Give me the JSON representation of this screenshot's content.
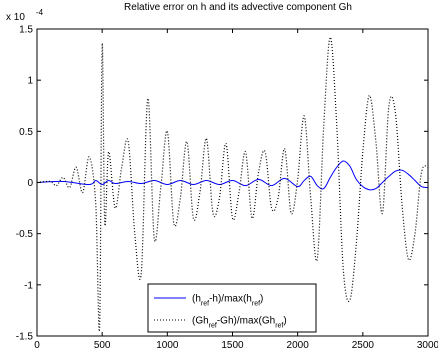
{
  "chart_data": {
    "type": "line",
    "title": "Relative error on h and its advective component Gh",
    "exponent_label": "x 10",
    "exponent_power": "-4",
    "xlim": [
      0,
      3000
    ],
    "ylim": [
      -1.5,
      1.5
    ],
    "xticks": [
      "0",
      "500",
      "1000",
      "1500",
      "2000",
      "2500",
      "3000"
    ],
    "xtick_values": [
      0,
      500,
      1000,
      1500,
      2000,
      2500,
      3000
    ],
    "yticks": [
      "1.5",
      "1",
      "0.5",
      "0",
      "-0.5",
      "-1",
      "-1.5"
    ],
    "ytick_values": [
      1.5,
      1,
      0.5,
      0,
      -0.5,
      -1,
      -1.5
    ],
    "grid": false,
    "legend_placement": "bottom-center",
    "series": [
      {
        "name": "(h_ref-h)/max(h_ref)",
        "legend_parts": [
          [
            "(h",
            ""
          ],
          [
            "ref",
            "sub"
          ],
          [
            "-h)/max(h",
            ""
          ],
          [
            "ref",
            "sub"
          ],
          [
            ")",
            ""
          ]
        ],
        "color": "#0000ff",
        "style": "solid",
        "x": [
          0,
          200,
          400,
          450,
          500,
          550,
          600,
          700,
          800,
          900,
          1000,
          1100,
          1200,
          1300,
          1400,
          1500,
          1600,
          1700,
          1800,
          1900,
          2000,
          2050,
          2100,
          2150,
          2200,
          2250,
          2300,
          2350,
          2400,
          2450,
          2500,
          2550,
          2600,
          2650,
          2700,
          2750,
          2800,
          2850,
          2900,
          2950,
          3000
        ],
        "values": [
          0,
          0.01,
          -0.02,
          0.02,
          -0.02,
          0.02,
          -0.01,
          0.01,
          -0.01,
          0.02,
          -0.02,
          0.02,
          -0.02,
          0.02,
          -0.02,
          0.02,
          -0.03,
          0.03,
          -0.03,
          0.04,
          -0.04,
          0.02,
          0.06,
          -0.03,
          -0.06,
          0.05,
          0.15,
          0.21,
          0.16,
          0.03,
          -0.04,
          -0.07,
          -0.06,
          0.0,
          0.06,
          0.11,
          0.12,
          0.08,
          0.02,
          -0.04,
          -0.05
        ]
      },
      {
        "name": "(Gh_ref-Gh)/max(Gh_ref)",
        "legend_parts": [
          [
            "(Gh",
            ""
          ],
          [
            "ref",
            "sub"
          ],
          [
            "-Gh)/max(Gh",
            ""
          ],
          [
            "ref",
            "sub"
          ],
          [
            ")",
            ""
          ]
        ],
        "color": "#000000",
        "style": "dotted",
        "x": [
          0,
          100,
          150,
          200,
          250,
          300,
          350,
          400,
          450,
          480,
          500,
          520,
          550,
          600,
          650,
          700,
          750,
          800,
          850,
          900,
          950,
          1000,
          1050,
          1100,
          1150,
          1200,
          1250,
          1300,
          1350,
          1400,
          1450,
          1500,
          1550,
          1600,
          1650,
          1700,
          1750,
          1800,
          1850,
          1900,
          1950,
          2000,
          2050,
          2100,
          2150,
          2200,
          2250,
          2300,
          2350,
          2400,
          2450,
          2500,
          2550,
          2600,
          2650,
          2700,
          2750,
          2800,
          2850,
          2900,
          2950,
          3000
        ],
        "values": [
          0,
          0.01,
          -0.03,
          0.05,
          -0.05,
          0.15,
          -0.1,
          0.25,
          -0.2,
          -1.42,
          1.35,
          -0.4,
          0.3,
          -0.25,
          0.15,
          0.4,
          -0.5,
          -0.88,
          0.82,
          -0.55,
          -0.05,
          0.5,
          -0.4,
          -0.15,
          0.4,
          -0.35,
          -0.1,
          0.43,
          -0.3,
          -0.15,
          0.38,
          -0.35,
          -0.1,
          0.3,
          -0.35,
          0.1,
          0.3,
          -0.25,
          -0.15,
          0.33,
          -0.3,
          0.03,
          0.65,
          -0.15,
          -0.75,
          0.55,
          1.42,
          0.55,
          -0.85,
          -1.15,
          -0.6,
          0.3,
          0.85,
          0.4,
          -0.3,
          0.75,
          0.68,
          -0.2,
          -0.75,
          -0.5,
          0.1,
          0.15
        ]
      }
    ]
  }
}
